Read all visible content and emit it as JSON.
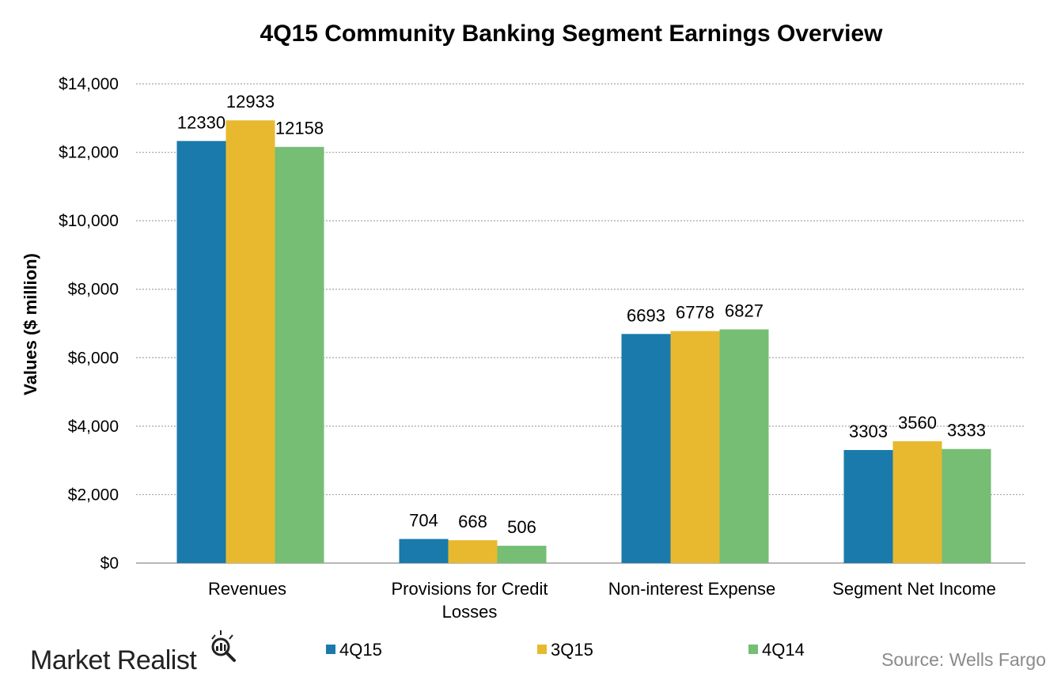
{
  "chart_data": {
    "type": "bar",
    "title": "4Q15 Community Banking Segment Earnings Overview",
    "ylabel": "Values ($ million)",
    "xlabel": "",
    "ylim": [
      0,
      14000
    ],
    "yticks": [
      {
        "value": 0,
        "label": "$0"
      },
      {
        "value": 2000,
        "label": "$2,000"
      },
      {
        "value": 4000,
        "label": "$4,000"
      },
      {
        "value": 6000,
        "label": "$6,000"
      },
      {
        "value": 8000,
        "label": "$8,000"
      },
      {
        "value": 10000,
        "label": "$10,000"
      },
      {
        "value": 12000,
        "label": "$12,000"
      },
      {
        "value": 14000,
        "label": "$14,000"
      }
    ],
    "categories": [
      [
        "Revenues"
      ],
      [
        "Provisions for Credit",
        "Losses"
      ],
      [
        "Non-interest Expense"
      ],
      [
        "Segment Net Income"
      ]
    ],
    "series": [
      {
        "name": "4Q15",
        "color": "#1a7aab",
        "values": [
          12330,
          704,
          6693,
          3303
        ]
      },
      {
        "name": "3Q15",
        "color": "#e8b92f",
        "values": [
          12933,
          668,
          6778,
          3560
        ]
      },
      {
        "name": "4Q14",
        "color": "#75be74",
        "values": [
          12158,
          506,
          6827,
          3333
        ]
      }
    ],
    "grid": true,
    "grid_style": "dotted",
    "legend_position": "bottom"
  },
  "source": "Source: Wells Fargo",
  "logo": {
    "text": "Market Realist",
    "icon": "magnifier-icon"
  }
}
